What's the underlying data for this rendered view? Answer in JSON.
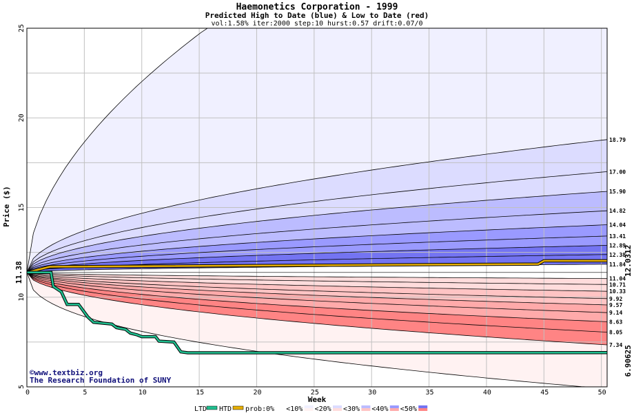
{
  "chart_data": {
    "type": "area",
    "title": "Haemonetics Corporation - 1999",
    "subtitle": "Predicted High to Date (blue) &  Low to Date (red)",
    "params": "vol:1.58% iter:2000 step:10 hurst:0.57 drift:0.07/0",
    "xlabel": "Week",
    "ylabel": "Price ($)",
    "xlim": [
      0,
      50.5
    ],
    "ylim": [
      5,
      25
    ],
    "x_ticks": [
      0,
      5,
      10,
      15,
      20,
      25,
      30,
      35,
      40,
      45,
      50
    ],
    "y_ticks": [
      5,
      10,
      15,
      20,
      25
    ],
    "grid": true,
    "start_price": 11.38,
    "start_label": "11.38",
    "outer_high_end": 25,
    "outer_low_end": 5,
    "high_quantiles_end": [
      18.79,
      17.0,
      15.9,
      14.82,
      14.04,
      13.41,
      12.89,
      12.38,
      11.84
    ],
    "low_quantiles_end": [
      11.04,
      10.71,
      10.33,
      9.92,
      9.57,
      9.14,
      8.63,
      8.05,
      7.34
    ],
    "right_labels": [
      "18.79",
      "17.00",
      "15.90",
      "14.82",
      "14.04",
      "13.41",
      "12.89",
      "12.38",
      "11.84",
      "11.04",
      "10.71",
      "10.33",
      "9.92",
      "9.57",
      "9.14",
      "8.63",
      "8.05",
      "7.34"
    ],
    "htd_series": {
      "name": "HTD",
      "color": "#e8b000",
      "points": [
        [
          0,
          11.38
        ],
        [
          2,
          11.7
        ],
        [
          44.5,
          11.85
        ],
        [
          45,
          12.03
        ],
        [
          50.5,
          12.03
        ]
      ],
      "end_label": "12.0312"
    },
    "ltd_series": {
      "name": "LTD",
      "color": "#20c090",
      "points": [
        [
          0,
          11.38
        ],
        [
          2.1,
          11.38
        ],
        [
          2.3,
          10.6
        ],
        [
          3,
          10.3
        ],
        [
          3.5,
          9.6
        ],
        [
          4.5,
          9.6
        ],
        [
          5.3,
          8.9
        ],
        [
          5.8,
          8.6
        ],
        [
          7.4,
          8.5
        ],
        [
          7.8,
          8.3
        ],
        [
          8.6,
          8.2
        ],
        [
          9,
          8.0
        ],
        [
          9.6,
          7.9
        ],
        [
          10,
          7.8
        ],
        [
          11.2,
          7.8
        ],
        [
          11.5,
          7.55
        ],
        [
          12.8,
          7.5
        ],
        [
          13.4,
          6.95
        ],
        [
          14,
          6.9
        ],
        [
          50.5,
          6.90625
        ]
      ],
      "end_label": "6.90625"
    },
    "credit": {
      "line1": "©www.textbiz.org",
      "line2": "The Research Foundation of SUNY"
    },
    "legend": {
      "ltd": "LTD",
      "htd": "HTD",
      "prob_label": "prob:",
      "bins": [
        "0%",
        "<10%",
        "<20%",
        "<30%",
        "<40%",
        "<50%"
      ],
      "blue_colors": [
        "#ffffff",
        "#f0f0ff",
        "#dcdcff",
        "#bcbcff",
        "#9a9aff",
        "#7474f2"
      ],
      "red_colors": [
        "#ffffff",
        "#fff2f2",
        "#ffdcdc",
        "#ffc4c4",
        "#ffaaaa",
        "#ff8484"
      ]
    },
    "colors": {
      "grid": "#c0c0c0",
      "frame": "#000000",
      "credit": "#10107a",
      "htd_label": "#a07800",
      "ltd_label": "#008060",
      "start_label": "#005030"
    }
  }
}
